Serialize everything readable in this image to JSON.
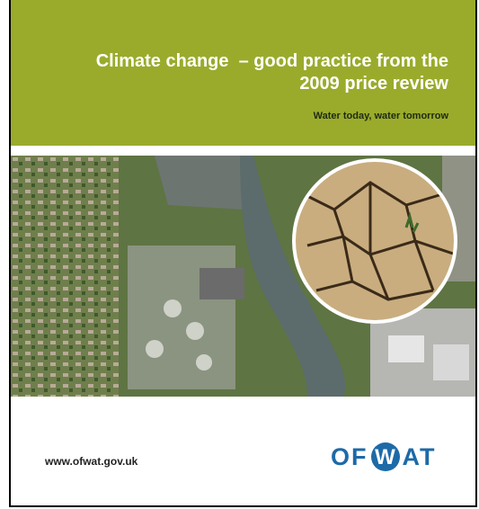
{
  "header": {
    "title_lines": [
      "Climate change  – good practice from the",
      "2009 price review"
    ],
    "tagline": "Water today, water tomorrow"
  },
  "footer": {
    "url": "www.ofwat.gov.uk",
    "logo": [
      "OF",
      "W",
      "AT"
    ]
  }
}
